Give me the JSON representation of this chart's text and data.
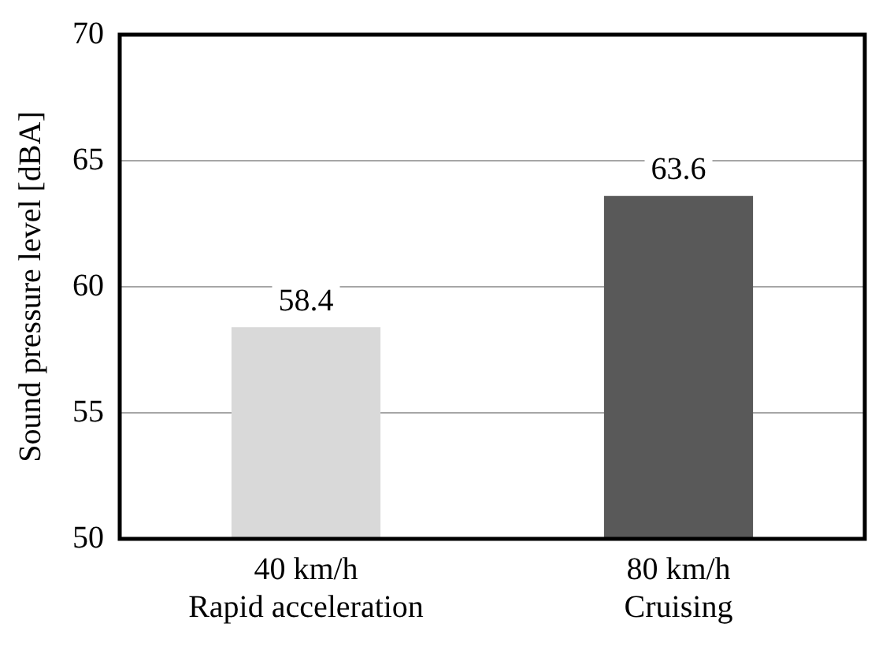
{
  "chart_data": {
    "type": "bar",
    "ylabel": "Sound pressure level [dBA]",
    "categories": [
      "40 km/h\nRapid acceleration",
      "80 km/h\nCruising"
    ],
    "values": [
      58.4,
      63.6
    ],
    "colors": [
      "#d9d9d9",
      "#595959"
    ],
    "ylim": [
      50,
      70
    ],
    "yticks": [
      50,
      55,
      60,
      65,
      70
    ],
    "grid": "y",
    "legend": false,
    "data_labels": true
  }
}
